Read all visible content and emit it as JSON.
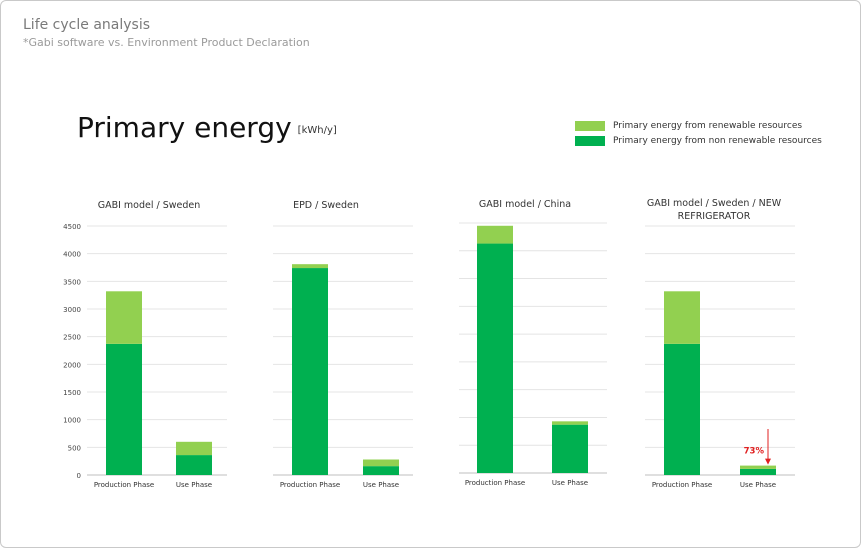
{
  "header": {
    "title": "Life cycle analysis",
    "subtitle": "*Gabi software vs. Environment Product Declaration"
  },
  "main": {
    "title": "Primary energy",
    "unit": "[kWh/y]"
  },
  "legend": {
    "items": [
      {
        "label": "Primary energy from renewable resources",
        "color": "#92d050"
      },
      {
        "label": "Primary energy from non renewable resources",
        "color": "#00b050"
      }
    ]
  },
  "annotation": {
    "text": "73%",
    "color": "#e02020"
  },
  "chart_data": [
    {
      "type": "bar",
      "stacked": true,
      "title": "GABI model / Sweden",
      "categories": [
        "Production Phase",
        "Use Phase"
      ],
      "series": [
        {
          "name": "Primary energy from non renewable resources",
          "values": [
            2370,
            360
          ]
        },
        {
          "name": "Primary energy from renewable resources",
          "values": [
            950,
            240
          ]
        }
      ],
      "ylim": [
        0,
        4500
      ],
      "yticks": [
        0,
        500,
        1000,
        1500,
        2000,
        2500,
        3000,
        3500,
        4000,
        4500
      ],
      "show_yticks": true,
      "grid": true
    },
    {
      "type": "bar",
      "stacked": true,
      "title": "EPD / Sweden",
      "categories": [
        "Production Phase",
        "Use Phase"
      ],
      "series": [
        {
          "name": "Primary energy from non renewable resources",
          "values": [
            3740,
            160
          ]
        },
        {
          "name": "Primary energy from renewable resources",
          "values": [
            70,
            120
          ]
        }
      ],
      "ylim": [
        0,
        4500
      ],
      "show_yticks": false,
      "grid": true
    },
    {
      "type": "bar",
      "stacked": true,
      "title": "GABI model / China",
      "categories": [
        "Production Phase",
        "Use Phase"
      ],
      "series": [
        {
          "name": "Primary energy from non renewable resources",
          "values": [
            4130,
            870
          ]
        },
        {
          "name": "Primary energy from renewable resources",
          "values": [
            320,
            60
          ]
        }
      ],
      "ylim": [
        0,
        4500
      ],
      "show_yticks": false,
      "grid": true
    },
    {
      "type": "bar",
      "stacked": true,
      "title": "GABI model / Sweden / NEW REFRIGERATOR",
      "categories": [
        "Production Phase",
        "Use Phase"
      ],
      "series": [
        {
          "name": "Primary energy from non renewable resources",
          "values": [
            2370,
            110
          ]
        },
        {
          "name": "Primary energy from renewable resources",
          "values": [
            950,
            60
          ]
        }
      ],
      "ylim": [
        0,
        4500
      ],
      "show_yticks": false,
      "grid": true
    }
  ]
}
